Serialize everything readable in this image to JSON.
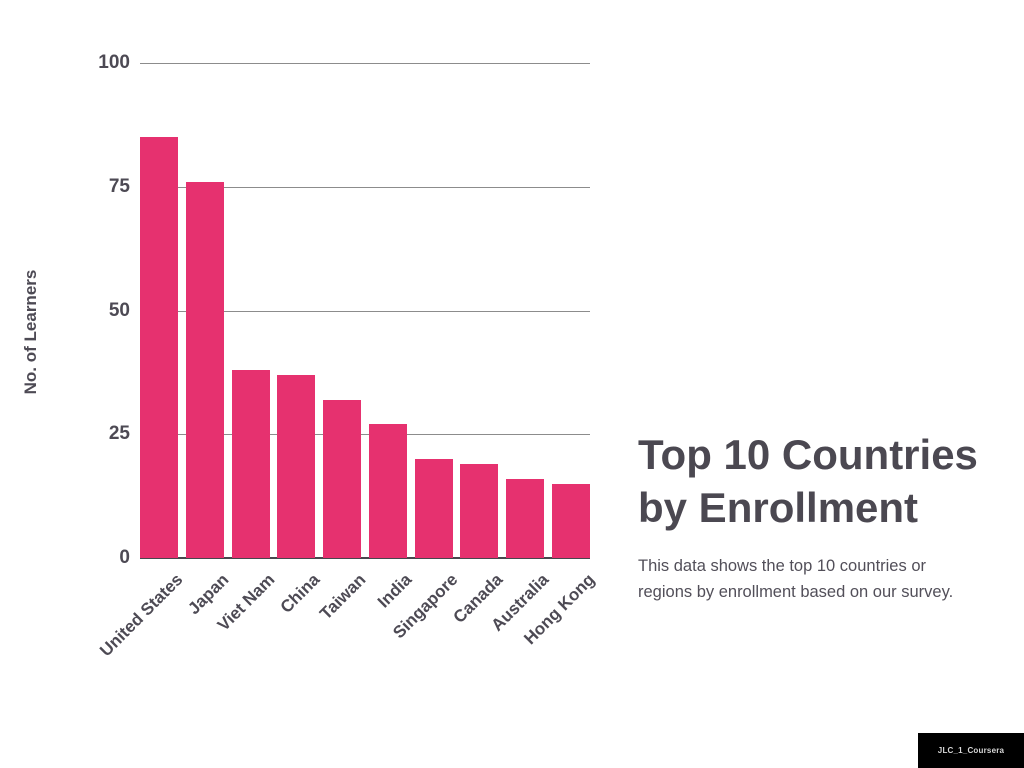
{
  "chart_data": {
    "type": "bar",
    "title": "Top 10 Countries by Enrollment",
    "categories": [
      "United States",
      "Japan",
      "Viet Nam",
      "China",
      "Taiwan",
      "India",
      "Singapore",
      "Canada",
      "Australia",
      "Hong Kong"
    ],
    "values": [
      85,
      76,
      38,
      37,
      32,
      27,
      20,
      19,
      16,
      15
    ],
    "xlabel": "",
    "ylabel": "No. of Learners",
    "ylim": [
      0,
      100
    ],
    "yticks": [
      0,
      25,
      50,
      75,
      100
    ],
    "grid": true,
    "legend": false,
    "bar_color": "#e6316f",
    "grid_color": "#8c8c8c",
    "axis_color": "#47474d",
    "text_color": "#4d4a54"
  },
  "side_panel": {
    "title_line1": "Top 10 Countries",
    "title_line2": "by Enrollment",
    "subtitle_line1": "This data shows the top 10 countries or",
    "subtitle_line2": "regions by enrollment based on our survey."
  },
  "footer": {
    "watermark": "JLC_1_Coursera"
  }
}
